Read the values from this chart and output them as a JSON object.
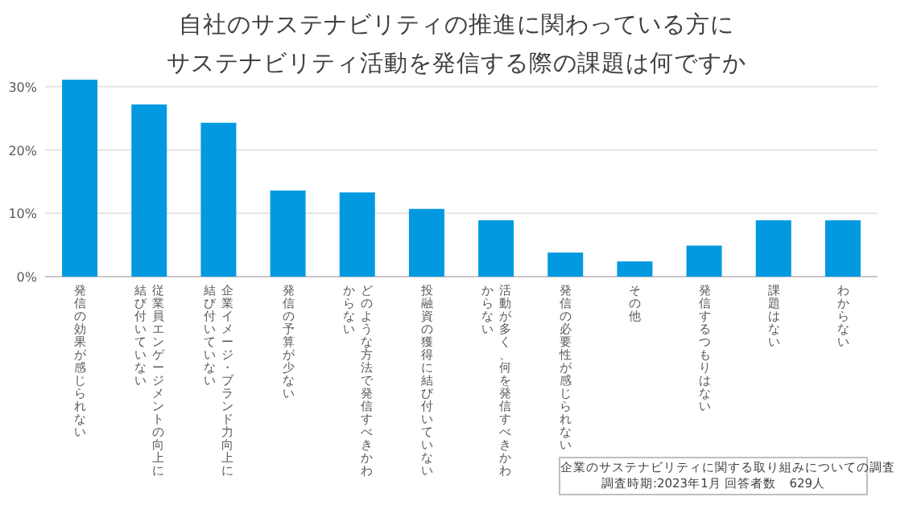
{
  "chart_data": {
    "type": "bar",
    "title": "自社のサステナビリティの推進に関わっている方に",
    "subtitle": "サステナビリティ活動を発信する際の課題は何ですか",
    "categories": [
      "発信の効果が感じられない",
      "従業員エンゲージメントの向上に結び付いていない",
      "企業イメージ・ブランド力向上に結び付いていない",
      "発信の予算が少ない",
      "どのような方法で発信すべきかわからない",
      "投融資の獲得に結び付いていない",
      "活動が多く、何を発信すべきかわからない",
      "発信の必要性が感じられない",
      "その他",
      "発信するつもりはない",
      "課題はない",
      "わからない"
    ],
    "values": [
      31.1,
      27.2,
      24.3,
      13.6,
      13.3,
      10.7,
      8.9,
      3.8,
      2.4,
      4.9,
      8.9,
      8.9
    ],
    "color": "#0399e0",
    "ylim": [
      0,
      31.5
    ],
    "yticks": [
      {
        "value": 0,
        "label": "0%"
      },
      {
        "value": 10,
        "label": "10%"
      },
      {
        "value": 20,
        "label": "20%"
      },
      {
        "value": 30,
        "label": "30%"
      }
    ],
    "grid": "y",
    "annotations": [
      "企業のサステナビリティに関する取り組みについての調査",
      "調査時期:2023年1月 回答者数　629人"
    ]
  }
}
